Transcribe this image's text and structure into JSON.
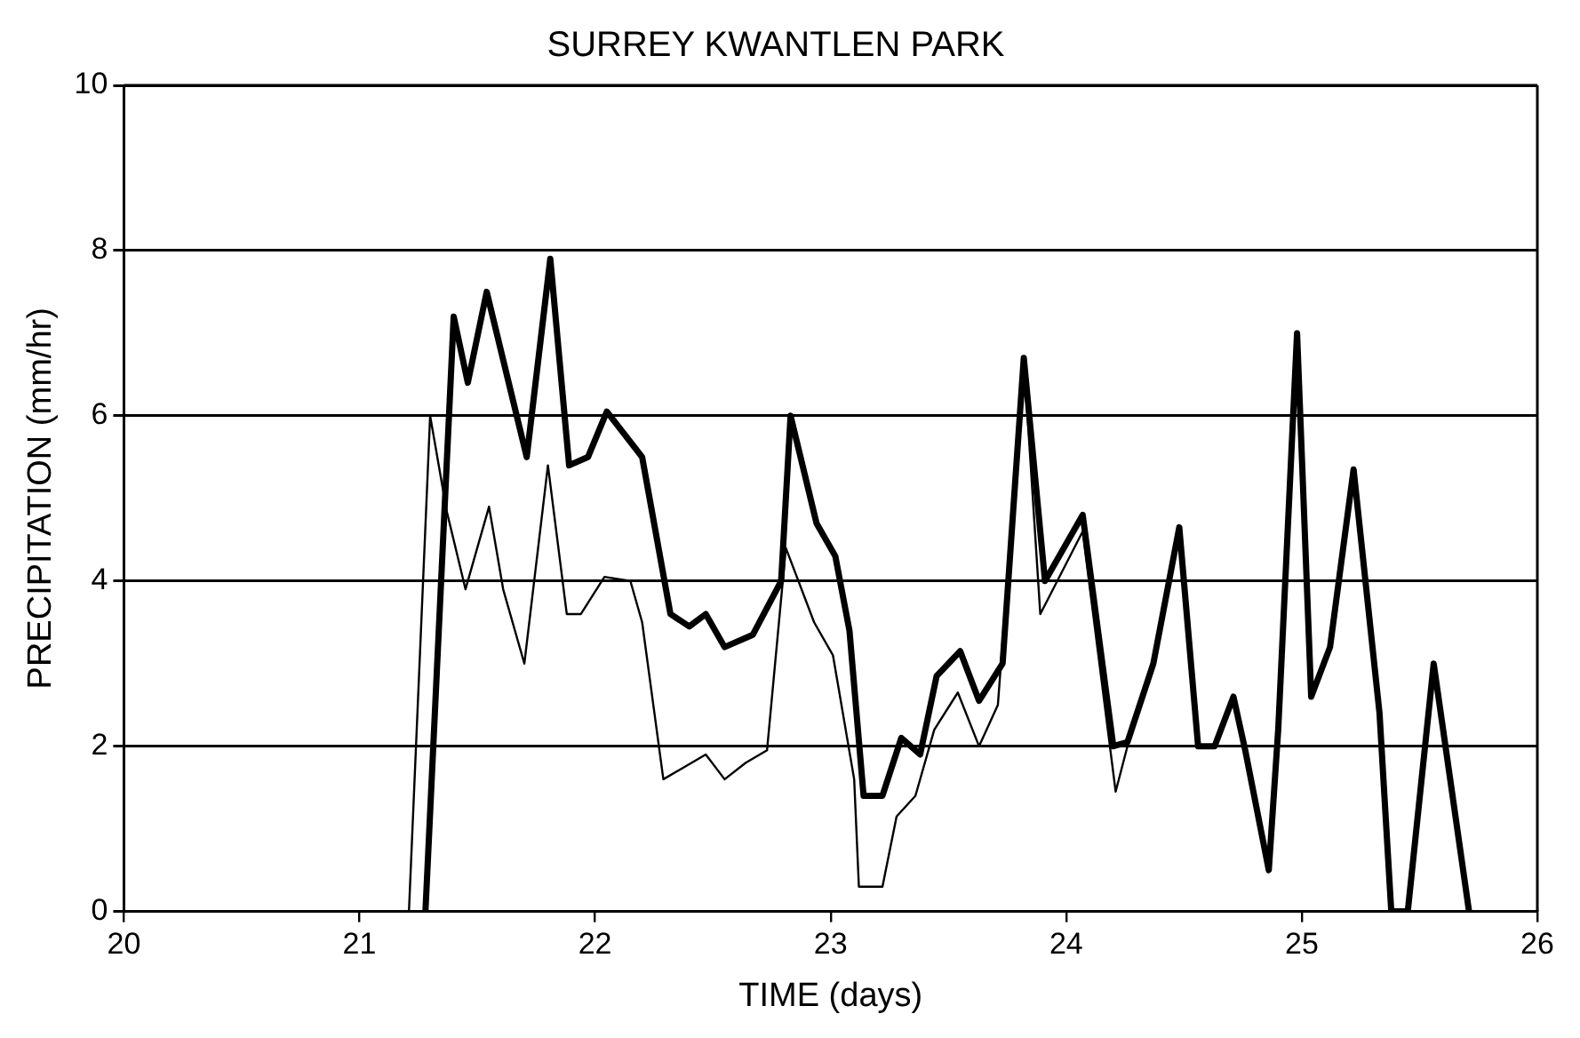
{
  "chart_data": {
    "type": "line",
    "title": "SURREY KWANTLEN PARK",
    "xlabel": "TIME (days)",
    "ylabel": "PRECIPITATION (mm/hr)",
    "xlim": [
      20,
      26
    ],
    "xticks": [
      20,
      21,
      22,
      23,
      24,
      25,
      26
    ],
    "ylim": [
      0,
      10
    ],
    "yticks": [
      0,
      2,
      4,
      6,
      8,
      10
    ],
    "grid": "y",
    "legend": false,
    "marker": "none",
    "line_style": "solid",
    "series": [
      {
        "color": "#000000",
        "x": [
          21.28,
          21.4,
          21.46,
          21.54,
          21.71,
          21.81,
          21.89,
          21.97,
          22.05,
          22.2,
          22.32,
          22.4,
          22.47,
          22.55,
          22.67,
          22.79,
          22.83,
          22.94,
          23.02,
          23.08,
          23.14,
          23.22,
          23.3,
          23.38,
          23.45,
          23.55,
          23.63,
          23.73,
          23.82,
          23.91,
          24.07,
          24.2,
          24.26,
          24.37,
          24.48,
          24.56,
          24.63,
          24.71,
          24.76,
          24.86,
          24.9,
          24.98,
          25.04,
          25.12,
          25.22,
          25.33,
          25.38,
          25.45,
          25.56,
          25.71
        ],
        "values": [
          0,
          7.2,
          6.4,
          7.5,
          5.5,
          7.9,
          5.4,
          5.5,
          6.05,
          5.5,
          3.6,
          3.45,
          3.6,
          3.2,
          3.35,
          4.0,
          6.0,
          4.7,
          4.3,
          3.4,
          1.4,
          1.4,
          2.1,
          1.9,
          2.85,
          3.15,
          2.55,
          3.0,
          6.7,
          4.0,
          4.8,
          2.0,
          2.05,
          3.0,
          4.65,
          2.0,
          2.0,
          2.6,
          1.95,
          0.5,
          2.2,
          7.0,
          2.6,
          3.2,
          5.35,
          2.4,
          0,
          0,
          3.0,
          0
        ]
      },
      {
        "color": "#000000",
        "x": [
          21.21,
          21.3,
          21.37,
          21.45,
          21.55,
          21.61,
          21.7,
          21.8,
          21.88,
          21.94,
          22.04,
          22.15,
          22.2,
          22.29,
          22.47,
          22.55,
          22.64,
          22.73,
          22.81,
          22.93,
          23.01,
          23.1,
          23.12,
          23.22,
          23.28,
          23.36,
          23.44,
          23.54,
          23.63,
          23.71,
          23.82,
          23.89,
          24.07,
          24.21,
          24.26,
          24.37,
          24.48,
          24.56,
          24.63,
          24.71,
          24.76,
          24.86,
          24.9,
          24.98,
          25.04,
          25.12,
          25.22,
          25.33,
          25.38,
          25.45,
          25.56,
          25.71
        ],
        "values": [
          0,
          6.0,
          4.85,
          3.9,
          4.9,
          3.9,
          3.0,
          5.4,
          3.6,
          3.6,
          4.05,
          4.0,
          3.5,
          1.6,
          1.9,
          1.6,
          1.8,
          1.95,
          4.4,
          3.5,
          3.1,
          1.6,
          0.3,
          0.3,
          1.15,
          1.4,
          2.2,
          2.65,
          2.0,
          2.5,
          6.7,
          3.6,
          4.6,
          1.45,
          2.0,
          3.0,
          4.65,
          2.0,
          2.0,
          2.6,
          1.95,
          0.5,
          2.2,
          7.0,
          2.6,
          3.2,
          5.35,
          2.4,
          0,
          0,
          3.0,
          0
        ]
      }
    ]
  }
}
